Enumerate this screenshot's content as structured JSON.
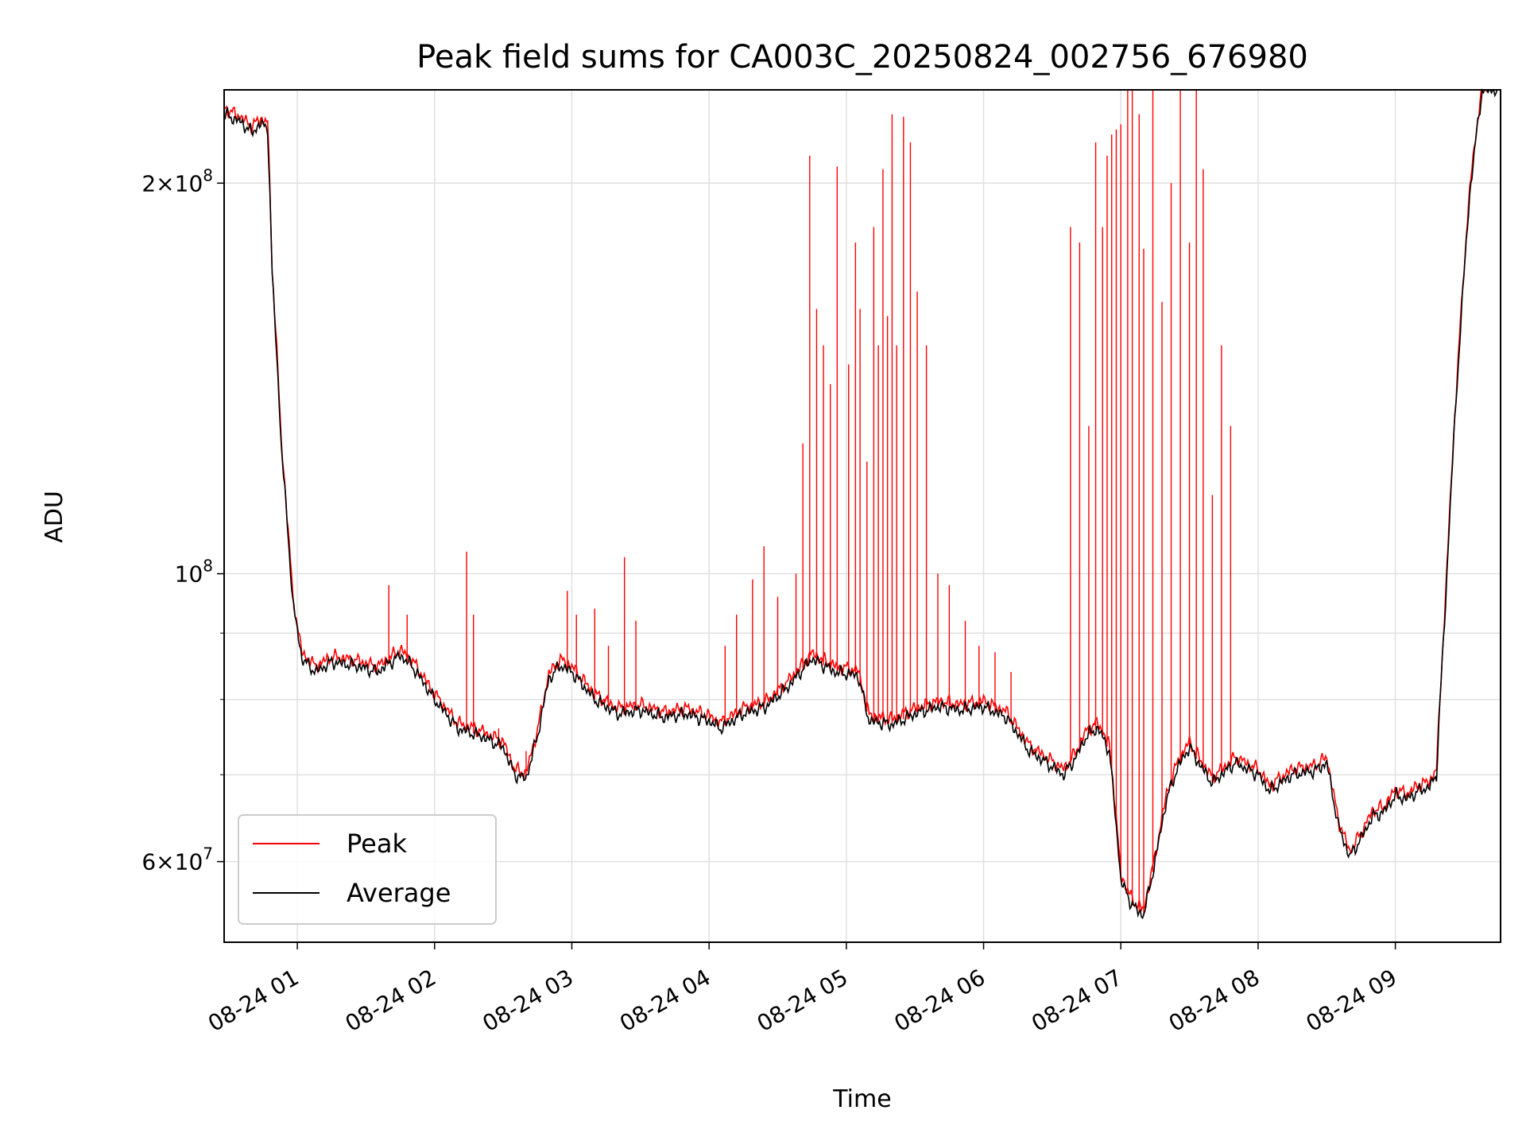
{
  "chart_data": {
    "type": "line",
    "title": "Peak field sums for CA003C_20250824_002756_676980",
    "xlabel": "Time",
    "ylabel": "ADU",
    "yscale": "log",
    "xlim": [
      "2025-08-24 00:28",
      "2025-08-24 09:46"
    ],
    "ylim": [
      52000000,
      236000000
    ],
    "grid": true,
    "legend_position": "lower-left",
    "x_tick_labels": [
      "08-24 01",
      "08-24 02",
      "08-24 03",
      "08-24 04",
      "08-24 05",
      "08-24 06",
      "08-24 07",
      "08-24 08",
      "08-24 09"
    ],
    "y_tick_labels": [
      {
        "value": 200000000,
        "mantissa": "2",
        "exp": "8"
      },
      {
        "value": 100000000,
        "mantissa": "",
        "exp": "8"
      },
      {
        "value": 60000000,
        "mantissa": "6",
        "exp": "7"
      }
    ],
    "series": [
      {
        "name": "Average",
        "color": "#000000",
        "points": [
          [
            "00:28",
            226000000
          ],
          [
            "00:35",
            223000000
          ],
          [
            "00:40",
            219000000
          ],
          [
            "00:44",
            222000000
          ],
          [
            "00:47",
            221000000
          ],
          [
            "00:49",
            170000000
          ],
          [
            "00:53",
            125000000
          ],
          [
            "00:58",
            95000000
          ],
          [
            "01:02",
            86000000
          ],
          [
            "01:08",
            84000000
          ],
          [
            "01:15",
            85500000
          ],
          [
            "01:25",
            85000000
          ],
          [
            "01:35",
            84000000
          ],
          [
            "01:45",
            86500000
          ],
          [
            "01:50",
            85000000
          ],
          [
            "02:00",
            80000000
          ],
          [
            "02:10",
            76000000
          ],
          [
            "02:20",
            75000000
          ],
          [
            "02:30",
            73500000
          ],
          [
            "02:35",
            70000000
          ],
          [
            "02:40",
            69500000
          ],
          [
            "02:45",
            75000000
          ],
          [
            "02:50",
            83000000
          ],
          [
            "02:55",
            85000000
          ],
          [
            "03:00",
            84000000
          ],
          [
            "03:10",
            80000000
          ],
          [
            "03:20",
            78000000
          ],
          [
            "03:30",
            78500000
          ],
          [
            "03:40",
            77500000
          ],
          [
            "03:50",
            78000000
          ],
          [
            "04:00",
            77000000
          ],
          [
            "04:05",
            76000000
          ],
          [
            "04:15",
            78000000
          ],
          [
            "04:25",
            79000000
          ],
          [
            "04:35",
            82000000
          ],
          [
            "04:45",
            86000000
          ],
          [
            "04:55",
            84000000
          ],
          [
            "05:05",
            83500000
          ],
          [
            "05:10",
            77000000
          ],
          [
            "05:20",
            76500000
          ],
          [
            "05:30",
            78000000
          ],
          [
            "05:40",
            79000000
          ],
          [
            "05:50",
            78500000
          ],
          [
            "06:00",
            79000000
          ],
          [
            "06:10",
            77500000
          ],
          [
            "06:20",
            73000000
          ],
          [
            "06:30",
            71000000
          ],
          [
            "06:35",
            70000000
          ],
          [
            "06:40",
            72000000
          ],
          [
            "06:45",
            75000000
          ],
          [
            "06:50",
            76000000
          ],
          [
            "06:55",
            73000000
          ],
          [
            "07:00",
            58000000
          ],
          [
            "07:05",
            55500000
          ],
          [
            "07:10",
            54500000
          ],
          [
            "07:15",
            60000000
          ],
          [
            "07:20",
            67000000
          ],
          [
            "07:25",
            71000000
          ],
          [
            "07:30",
            73500000
          ],
          [
            "07:35",
            71000000
          ],
          [
            "07:40",
            69000000
          ],
          [
            "07:50",
            71500000
          ],
          [
            "08:00",
            70000000
          ],
          [
            "08:05",
            68000000
          ],
          [
            "08:15",
            70000000
          ],
          [
            "08:25",
            70500000
          ],
          [
            "08:30",
            71500000
          ],
          [
            "08:35",
            64000000
          ],
          [
            "08:40",
            60500000
          ],
          [
            "08:45",
            62500000
          ],
          [
            "08:50",
            65000000
          ],
          [
            "08:55",
            65500000
          ],
          [
            "09:00",
            67500000
          ],
          [
            "09:05",
            67000000
          ],
          [
            "09:10",
            68000000
          ],
          [
            "09:15",
            68500000
          ],
          [
            "09:18",
            70000000
          ],
          [
            "09:22",
            95000000
          ],
          [
            "09:27",
            140000000
          ],
          [
            "09:33",
            200000000
          ],
          [
            "09:38",
            236000000
          ],
          [
            "09:46",
            236000000
          ]
        ]
      },
      {
        "name": "Peak",
        "color": "#ff0000",
        "spikes": [
          [
            "01:40",
            98000000
          ],
          [
            "01:48",
            93000000
          ],
          [
            "02:14",
            104000000
          ],
          [
            "02:17",
            93000000
          ],
          [
            "02:28",
            76000000
          ],
          [
            "02:40",
            73000000
          ],
          [
            "02:58",
            97000000
          ],
          [
            "03:02",
            93000000
          ],
          [
            "03:10",
            94000000
          ],
          [
            "03:16",
            88000000
          ],
          [
            "03:23",
            103000000
          ],
          [
            "03:28",
            92000000
          ],
          [
            "04:07",
            88000000
          ],
          [
            "04:12",
            93000000
          ],
          [
            "04:19",
            99000000
          ],
          [
            "04:24",
            105000000
          ],
          [
            "04:30",
            96000000
          ],
          [
            "04:38",
            100000000
          ],
          [
            "04:41",
            126000000
          ],
          [
            "04:44",
            210000000
          ],
          [
            "04:47",
            160000000
          ],
          [
            "04:50",
            150000000
          ],
          [
            "04:53",
            140000000
          ],
          [
            "04:56",
            206000000
          ],
          [
            "05:01",
            145000000
          ],
          [
            "05:04",
            180000000
          ],
          [
            "05:06",
            160000000
          ],
          [
            "05:09",
            122000000
          ],
          [
            "05:12",
            185000000
          ],
          [
            "05:14",
            150000000
          ],
          [
            "05:16",
            205000000
          ],
          [
            "05:18",
            158000000
          ],
          [
            "05:20",
            226000000
          ],
          [
            "05:22",
            150000000
          ],
          [
            "05:25",
            225000000
          ],
          [
            "05:28",
            215000000
          ],
          [
            "05:31",
            165000000
          ],
          [
            "05:35",
            150000000
          ],
          [
            "05:40",
            100000000
          ],
          [
            "05:45",
            98000000
          ],
          [
            "05:52",
            92000000
          ],
          [
            "05:58",
            88000000
          ],
          [
            "06:05",
            87000000
          ],
          [
            "06:12",
            84000000
          ],
          [
            "06:38",
            185000000
          ],
          [
            "06:42",
            180000000
          ],
          [
            "06:46",
            130000000
          ],
          [
            "06:49",
            215000000
          ],
          [
            "06:52",
            185000000
          ],
          [
            "06:54",
            210000000
          ],
          [
            "06:56",
            218000000
          ],
          [
            "06:58",
            220000000
          ],
          [
            "07:00",
            222000000
          ],
          [
            "07:03",
            236000000
          ],
          [
            "07:05",
            236000000
          ],
          [
            "07:08",
            226000000
          ],
          [
            "07:10",
            178000000
          ],
          [
            "07:14",
            236000000
          ],
          [
            "07:18",
            162000000
          ],
          [
            "07:22",
            200000000
          ],
          [
            "07:26",
            236000000
          ],
          [
            "07:30",
            180000000
          ],
          [
            "07:33",
            236000000
          ],
          [
            "07:36",
            205000000
          ],
          [
            "07:40",
            115000000
          ],
          [
            "07:44",
            150000000
          ],
          [
            "07:48",
            130000000
          ]
        ]
      }
    ]
  }
}
